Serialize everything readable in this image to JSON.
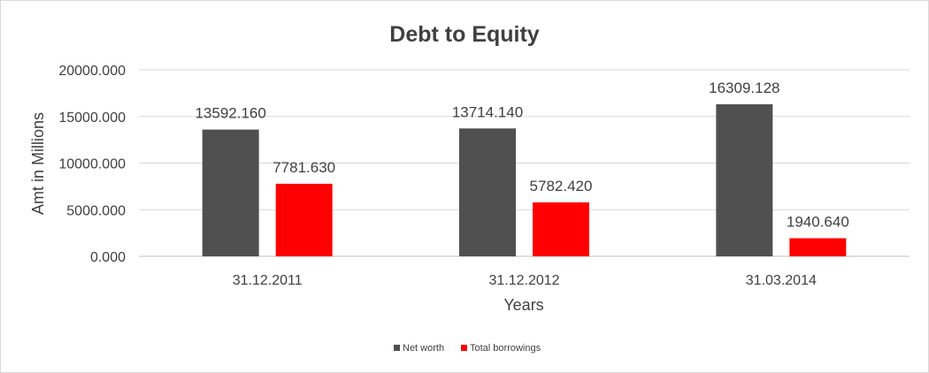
{
  "chart_data": {
    "type": "bar",
    "title": "Debt to Equity",
    "xlabel": "Years",
    "ylabel": "Amt in Millions",
    "categories": [
      "31.12.2011",
      "31.12.2012",
      "31.03.2014"
    ],
    "series": [
      {
        "name": "Net worth",
        "color": "#505050",
        "values": [
          13592.16,
          13714.14,
          16309.128
        ],
        "labels": [
          "13592.160",
          "13714.140",
          "16309.128"
        ]
      },
      {
        "name": "Total borrowings",
        "color": "#ff0000",
        "values": [
          7781.63,
          5782.42,
          1940.64
        ],
        "labels": [
          "7781.630",
          "5782.420",
          "1940.640"
        ]
      }
    ],
    "ylim": [
      0,
      20000
    ],
    "yticks": [
      0,
      5000,
      10000,
      15000,
      20000
    ],
    "ytick_labels": [
      "0.000",
      "5000.000",
      "10000.000",
      "15000.000",
      "20000.000"
    ],
    "grid": true,
    "legend_position": "bottom"
  }
}
